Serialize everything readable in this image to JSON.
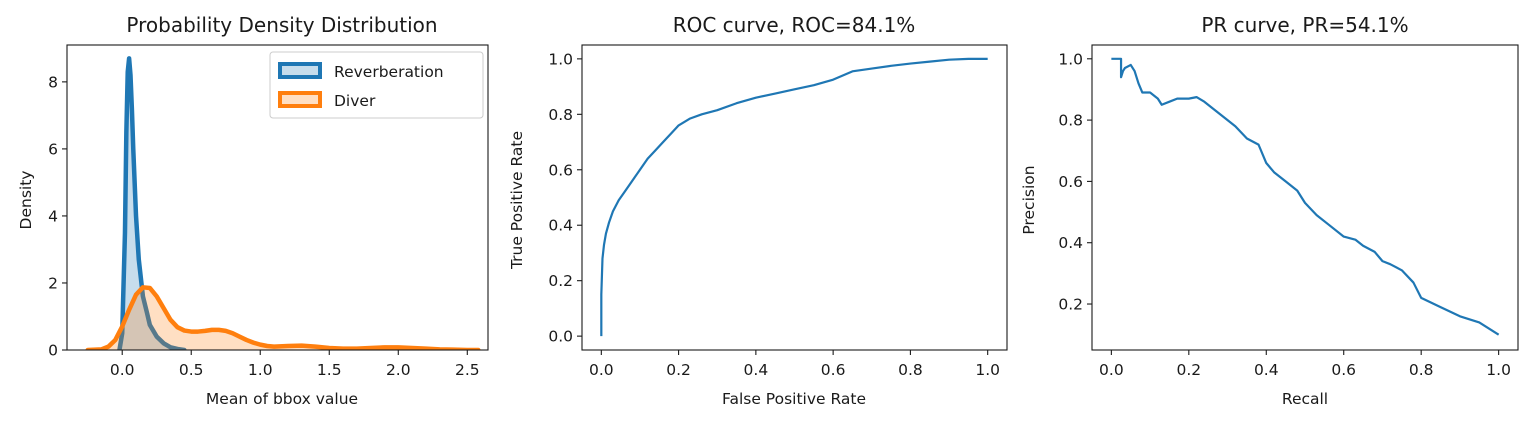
{
  "chart_data": [
    {
      "type": "area",
      "title": "Probability Density Distribution",
      "xlabel": "Mean of bbox value",
      "ylabel": "Density",
      "xlim": [
        -0.4,
        2.65
      ],
      "ylim": [
        0,
        9.1
      ],
      "xticks": [
        "0.0",
        "0.5",
        "1.0",
        "1.5",
        "2.0",
        "2.5"
      ],
      "yticks": [
        "0",
        "2",
        "4",
        "6",
        "8"
      ],
      "legend_position": "top-right",
      "grid": false,
      "series": [
        {
          "name": "Reverberation",
          "color": "#1f77b4",
          "x": [
            -0.02,
            0.0,
            0.02,
            0.03,
            0.04,
            0.05,
            0.06,
            0.07,
            0.08,
            0.1,
            0.12,
            0.15,
            0.18,
            0.2,
            0.25,
            0.3,
            0.35,
            0.4,
            0.45
          ],
          "y": [
            0.0,
            0.5,
            3.5,
            6.5,
            8.3,
            8.7,
            8.2,
            7.2,
            6.0,
            4.0,
            2.7,
            1.6,
            1.1,
            0.75,
            0.4,
            0.2,
            0.08,
            0.03,
            0.0
          ]
        },
        {
          "name": "Diver",
          "color": "#ff7f0e",
          "x": [
            -0.25,
            -0.15,
            -0.1,
            -0.05,
            0.0,
            0.05,
            0.1,
            0.15,
            0.2,
            0.25,
            0.3,
            0.35,
            0.4,
            0.45,
            0.5,
            0.55,
            0.6,
            0.65,
            0.7,
            0.75,
            0.8,
            0.85,
            0.9,
            0.95,
            1.0,
            1.05,
            1.1,
            1.2,
            1.3,
            1.4,
            1.5,
            1.6,
            1.7,
            1.8,
            1.9,
            2.0,
            2.1,
            2.2,
            2.3,
            2.4,
            2.5,
            2.58
          ],
          "y": [
            0.0,
            0.02,
            0.1,
            0.3,
            0.7,
            1.2,
            1.65,
            1.87,
            1.85,
            1.6,
            1.25,
            0.9,
            0.68,
            0.58,
            0.55,
            0.55,
            0.57,
            0.6,
            0.6,
            0.57,
            0.5,
            0.4,
            0.3,
            0.22,
            0.16,
            0.12,
            0.1,
            0.12,
            0.13,
            0.1,
            0.06,
            0.04,
            0.04,
            0.06,
            0.08,
            0.08,
            0.06,
            0.04,
            0.02,
            0.01,
            0.0,
            0.0
          ]
        }
      ]
    },
    {
      "type": "line",
      "title": "ROC curve, ROC=84.1%",
      "xlabel": "False Positive Rate",
      "ylabel": "True Positive Rate",
      "xlim": [
        -0.05,
        1.05
      ],
      "ylim": [
        -0.05,
        1.05
      ],
      "xticks": [
        "0.0",
        "0.2",
        "0.4",
        "0.6",
        "0.8",
        "1.0"
      ],
      "yticks": [
        "0.0",
        "0.2",
        "0.4",
        "0.6",
        "0.8",
        "1.0"
      ],
      "grid": false,
      "series": [
        {
          "color": "#1f77b4",
          "x": [
            0.0,
            0.0,
            0.003,
            0.007,
            0.012,
            0.02,
            0.03,
            0.045,
            0.06,
            0.08,
            0.1,
            0.12,
            0.14,
            0.16,
            0.18,
            0.2,
            0.23,
            0.26,
            0.3,
            0.35,
            0.4,
            0.45,
            0.5,
            0.55,
            0.6,
            0.65,
            0.7,
            0.75,
            0.8,
            0.85,
            0.9,
            0.95,
            1.0
          ],
          "y": [
            0.0,
            0.15,
            0.28,
            0.33,
            0.37,
            0.41,
            0.45,
            0.49,
            0.52,
            0.56,
            0.6,
            0.64,
            0.67,
            0.7,
            0.73,
            0.76,
            0.785,
            0.8,
            0.815,
            0.84,
            0.86,
            0.875,
            0.89,
            0.905,
            0.925,
            0.955,
            0.965,
            0.975,
            0.983,
            0.99,
            0.997,
            1.0,
            1.0
          ]
        }
      ]
    },
    {
      "type": "line",
      "title": "PR curve, PR=54.1%",
      "xlabel": "Recall",
      "ylabel": "Precision",
      "xlim": [
        -0.05,
        1.05
      ],
      "ylim": [
        0.05,
        1.045
      ],
      "xticks": [
        "0.0",
        "0.2",
        "0.4",
        "0.6",
        "0.8",
        "1.0"
      ],
      "yticks": [
        "0.2",
        "0.4",
        "0.6",
        "0.8",
        "1.0"
      ],
      "grid": false,
      "series": [
        {
          "color": "#1f77b4",
          "x": [
            0.0,
            0.025,
            0.025,
            0.03,
            0.035,
            0.05,
            0.06,
            0.07,
            0.08,
            0.1,
            0.12,
            0.13,
            0.15,
            0.17,
            0.2,
            0.22,
            0.24,
            0.26,
            0.28,
            0.3,
            0.32,
            0.35,
            0.38,
            0.4,
            0.42,
            0.45,
            0.48,
            0.5,
            0.53,
            0.56,
            0.6,
            0.63,
            0.65,
            0.68,
            0.7,
            0.72,
            0.75,
            0.78,
            0.8,
            0.85,
            0.9,
            0.95,
            1.0
          ],
          "y": [
            1.0,
            1.0,
            0.94,
            0.96,
            0.97,
            0.98,
            0.96,
            0.92,
            0.89,
            0.89,
            0.87,
            0.85,
            0.86,
            0.87,
            0.87,
            0.875,
            0.86,
            0.84,
            0.82,
            0.8,
            0.78,
            0.74,
            0.72,
            0.66,
            0.63,
            0.6,
            0.57,
            0.53,
            0.49,
            0.46,
            0.42,
            0.41,
            0.39,
            0.37,
            0.34,
            0.33,
            0.31,
            0.27,
            0.22,
            0.19,
            0.16,
            0.14,
            0.1
          ]
        }
      ]
    }
  ]
}
